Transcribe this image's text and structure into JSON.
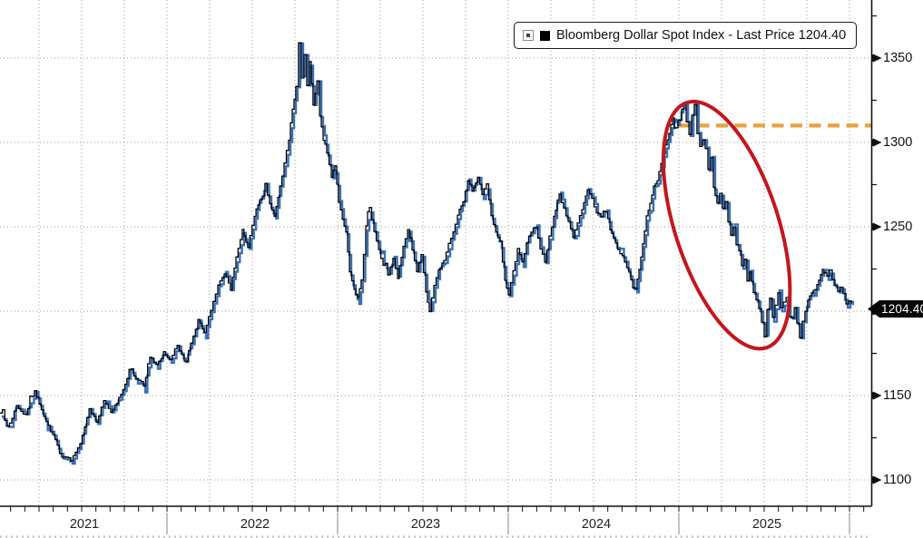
{
  "legend": {
    "label": "Bloomberg Dollar Spot Index - Last Price 1204.40"
  },
  "chart_data": {
    "type": "line",
    "title": "Bloomberg Dollar Spot Index",
    "legend_position": "top",
    "grid": true,
    "x_range_years": [
      2021,
      2026.1
    ],
    "ylim": [
      1087,
      1384
    ],
    "y_major_ticks": [
      1350,
      1300,
      1250,
      1200,
      1150,
      1100
    ],
    "y_minor_ticks": [
      1375,
      1325,
      1275,
      1225,
      1175,
      1125
    ],
    "x_tick_labels": [
      "2021",
      "2022",
      "2023",
      "2024",
      "2025"
    ],
    "last_price": 1204.4,
    "last_price_label": "1204.40",
    "colors": {
      "primary_series": "#000000",
      "overlay_series": "#3b71b5",
      "ellipse_annotation": "#c2171d",
      "dashed_level_line": "#e9a23b",
      "gridline": "#9a9a9a"
    },
    "series": [
      {
        "name": "Bloomberg Dollar Spot Index - Last Price",
        "color": "#000000",
        "points": [
          [
            2021.021,
            1139.8
          ],
          [
            2021.064,
            1130.7
          ],
          [
            2021.117,
            1143.6
          ],
          [
            2021.17,
            1138.2
          ],
          [
            2021.223,
            1152.2
          ],
          [
            2021.277,
            1136.0
          ],
          [
            2021.33,
            1126.4
          ],
          [
            2021.383,
            1112.9
          ],
          [
            2021.436,
            1111.3
          ],
          [
            2021.489,
            1122.1
          ],
          [
            2021.543,
            1141.4
          ],
          [
            2021.585,
            1134.4
          ],
          [
            2021.628,
            1147.9
          ],
          [
            2021.67,
            1139.8
          ],
          [
            2021.729,
            1150.5
          ],
          [
            2021.777,
            1165.1
          ],
          [
            2021.819,
            1158.6
          ],
          [
            2021.862,
            1155.9
          ],
          [
            2021.899,
            1173.7
          ],
          [
            2021.936,
            1167.8
          ],
          [
            2021.979,
            1175.8
          ],
          [
            2022.016,
            1172.0
          ],
          [
            2022.059,
            1180.1
          ],
          [
            2022.101,
            1170.4
          ],
          [
            2022.138,
            1181.2
          ],
          [
            2022.181,
            1195.2
          ],
          [
            2022.218,
            1186.6
          ],
          [
            2022.255,
            1200.5
          ],
          [
            2022.298,
            1214.8
          ],
          [
            2022.335,
            1223.1
          ],
          [
            2022.372,
            1213.4
          ],
          [
            2022.404,
            1231.2
          ],
          [
            2022.441,
            1247.3
          ],
          [
            2022.473,
            1239.2
          ],
          [
            2022.511,
            1255.4
          ],
          [
            2022.543,
            1267.2
          ],
          [
            2022.574,
            1276.9
          ],
          [
            2022.601,
            1263.4
          ],
          [
            2022.628,
            1255.4
          ],
          [
            2022.66,
            1274.2
          ],
          [
            2022.686,
            1287.6
          ],
          [
            2022.713,
            1301.1
          ],
          [
            2022.734,
            1319.9
          ],
          [
            2022.755,
            1333.3
          ],
          [
            2022.771,
            1358.6
          ],
          [
            2022.787,
            1338.7
          ],
          [
            2022.803,
            1352.2
          ],
          [
            2022.819,
            1333.3
          ],
          [
            2022.835,
            1346.8
          ],
          [
            2022.856,
            1322.6
          ],
          [
            2022.878,
            1336.0
          ],
          [
            2022.894,
            1314.5
          ],
          [
            2022.915,
            1303.8
          ],
          [
            2022.936,
            1293.0
          ],
          [
            2022.963,
            1279.6
          ],
          [
            2022.984,
            1286.6
          ],
          [
            2023.005,
            1266.1
          ],
          [
            2023.027,
            1255.4
          ],
          [
            2023.048,
            1247.3
          ],
          [
            2023.069,
            1223.1
          ],
          [
            2023.096,
            1212.4
          ],
          [
            2023.117,
            1207.0
          ],
          [
            2023.138,
            1217.8
          ],
          [
            2023.165,
            1250.0
          ],
          [
            2023.186,
            1260.8
          ],
          [
            2023.213,
            1247.3
          ],
          [
            2023.24,
            1236.6
          ],
          [
            2023.266,
            1228.5
          ],
          [
            2023.293,
            1221.5
          ],
          [
            2023.324,
            1231.2
          ],
          [
            2023.351,
            1220.4
          ],
          [
            2023.383,
            1239.2
          ],
          [
            2023.41,
            1249.0
          ],
          [
            2023.436,
            1236.6
          ],
          [
            2023.463,
            1224.2
          ],
          [
            2023.489,
            1233.9
          ],
          [
            2023.516,
            1212.4
          ],
          [
            2023.537,
            1200.0
          ],
          [
            2023.564,
            1215.0
          ],
          [
            2023.59,
            1225.8
          ],
          [
            2023.622,
            1229.6
          ],
          [
            2023.649,
            1239.2
          ],
          [
            2023.676,
            1247.3
          ],
          [
            2023.702,
            1257.0
          ],
          [
            2023.734,
            1265.1
          ],
          [
            2023.761,
            1276.9
          ],
          [
            2023.787,
            1271.5
          ],
          [
            2023.819,
            1279.0
          ],
          [
            2023.846,
            1268.8
          ],
          [
            2023.872,
            1274.2
          ],
          [
            2023.899,
            1255.4
          ],
          [
            2023.926,
            1245.7
          ],
          [
            2023.952,
            1239.2
          ],
          [
            2023.979,
            1217.8
          ],
          [
            2024.0,
            1210.8
          ],
          [
            2024.027,
            1223.1
          ],
          [
            2024.053,
            1236.6
          ],
          [
            2024.08,
            1228.5
          ],
          [
            2024.106,
            1240.3
          ],
          [
            2024.133,
            1247.3
          ],
          [
            2024.16,
            1250.0
          ],
          [
            2024.186,
            1238.2
          ],
          [
            2024.213,
            1228.5
          ],
          [
            2024.239,
            1243.6
          ],
          [
            2024.266,
            1255.4
          ],
          [
            2024.298,
            1269.9
          ],
          [
            2024.324,
            1260.8
          ],
          [
            2024.351,
            1252.7
          ],
          [
            2024.378,
            1244.6
          ],
          [
            2024.404,
            1251.1
          ],
          [
            2024.431,
            1259.7
          ],
          [
            2024.463,
            1273.1
          ],
          [
            2024.489,
            1267.2
          ],
          [
            2024.516,
            1258.1
          ],
          [
            2024.543,
            1255.4
          ],
          [
            2024.569,
            1260.8
          ],
          [
            2024.596,
            1248.9
          ],
          [
            2024.628,
            1239.2
          ],
          [
            2024.654,
            1234.9
          ],
          [
            2024.681,
            1229.6
          ],
          [
            2024.707,
            1223.1
          ],
          [
            2024.729,
            1215.1
          ],
          [
            2024.745,
            1213.5
          ],
          [
            2024.766,
            1225.8
          ],
          [
            2024.787,
            1239.2
          ],
          [
            2024.809,
            1255.4
          ],
          [
            2024.83,
            1263.4
          ],
          [
            2024.851,
            1274.2
          ],
          [
            2024.872,
            1278.0
          ],
          [
            2024.894,
            1287.6
          ],
          [
            2024.92,
            1298.4
          ],
          [
            2024.941,
            1304.8
          ],
          [
            2024.963,
            1314.5
          ],
          [
            2024.984,
            1310.2
          ],
          [
            2025.005,
            1317.2
          ],
          [
            2025.027,
            1323.6
          ],
          [
            2025.043,
            1311.8
          ],
          [
            2025.059,
            1303.8
          ],
          [
            2025.075,
            1315.6
          ],
          [
            2025.09,
            1322.6
          ],
          [
            2025.106,
            1305.0
          ],
          [
            2025.122,
            1298.4
          ],
          [
            2025.138,
            1302.7
          ],
          [
            2025.154,
            1297.3
          ],
          [
            2025.17,
            1285.0
          ],
          [
            2025.186,
            1292.0
          ],
          [
            2025.202,
            1274.2
          ],
          [
            2025.223,
            1263.4
          ],
          [
            2025.239,
            1268.8
          ],
          [
            2025.255,
            1260.8
          ],
          [
            2025.271,
            1265.1
          ],
          [
            2025.287,
            1253.0
          ],
          [
            2025.303,
            1245.7
          ],
          [
            2025.319,
            1251.1
          ],
          [
            2025.335,
            1239.2
          ],
          [
            2025.351,
            1234.9
          ],
          [
            2025.367,
            1225.8
          ],
          [
            2025.383,
            1230.1
          ],
          [
            2025.399,
            1217.8
          ],
          [
            2025.414,
            1223.1
          ],
          [
            2025.436,
            1211.3
          ],
          [
            2025.452,
            1207.0
          ],
          [
            2025.468,
            1201.6
          ],
          [
            2025.484,
            1193.5
          ],
          [
            2025.5,
            1185.5
          ],
          [
            2025.516,
            1201.6
          ],
          [
            2025.532,
            1207.0
          ],
          [
            2025.548,
            1195.2
          ],
          [
            2025.564,
            1202.7
          ],
          [
            2025.58,
            1210.2
          ],
          [
            2025.596,
            1201.6
          ],
          [
            2025.612,
            1205.4
          ],
          [
            2025.628,
            1208.1
          ],
          [
            2025.644,
            1198.9
          ],
          [
            2025.66,
            1196.2
          ],
          [
            2025.676,
            1201.6
          ],
          [
            2025.691,
            1193.5
          ],
          [
            2025.707,
            1185.5
          ],
          [
            2025.723,
            1195.2
          ],
          [
            2025.739,
            1202.7
          ],
          [
            2025.755,
            1207.0
          ],
          [
            2025.777,
            1211.3
          ],
          [
            2025.798,
            1213.5
          ],
          [
            2025.819,
            1218.9
          ],
          [
            2025.841,
            1224.2
          ],
          [
            2025.851,
            1226.0
          ],
          [
            2025.867,
            1220.4
          ],
          [
            2025.883,
            1223.1
          ],
          [
            2025.899,
            1217.8
          ],
          [
            2025.915,
            1215.1
          ],
          [
            2025.931,
            1211.3
          ],
          [
            2025.947,
            1213.5
          ],
          [
            2025.963,
            1208.1
          ],
          [
            2025.979,
            1204.0
          ],
          [
            2025.995,
            1207.0
          ],
          [
            2026.01,
            1204.4
          ]
        ]
      },
      {
        "name": "Bloomberg Dollar Spot Index (blue overlay)",
        "color": "#3b71b5",
        "points": "same_as_series_0"
      }
    ],
    "annotations": [
      {
        "type": "hline",
        "value": 1310,
        "from_year": 2025.0,
        "to_year": 2026.12,
        "style": "dashed",
        "color": "#e9a23b",
        "meaning": "early-2025 high level line"
      },
      {
        "type": "ellipse",
        "center_year": 2025.28,
        "center_value": 1251,
        "color": "#c2171d",
        "meaning": "circles the 2025 dollar plunge"
      }
    ]
  }
}
